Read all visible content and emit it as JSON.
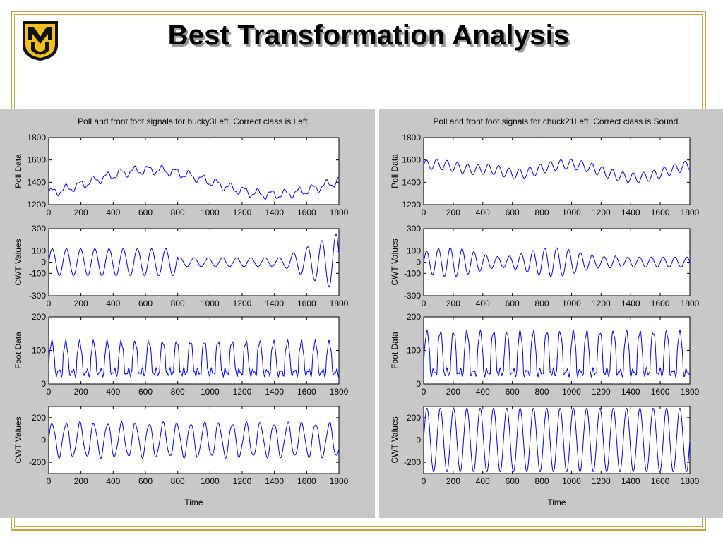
{
  "slide": {
    "title": "Best Transformation Analysis",
    "logo_letters": "MU"
  },
  "colors": {
    "frame": "#c8a04a",
    "panel_bg": "#c8c8c8",
    "plot_bg": "#ffffff",
    "trace": "#0000ff",
    "logo_gold": "#f2c21b",
    "logo_black": "#111111"
  },
  "chart_data": [
    {
      "type": "line",
      "title": "Poll and front foot signals for bucky3Left. Correct class is Left.",
      "xlabel": "Time",
      "x_ticks": [
        "0",
        "200",
        "400",
        "600",
        "800",
        "1000",
        "1200",
        "1400",
        "1600",
        "1800"
      ],
      "xlim": [
        0,
        1800
      ],
      "subplots": [
        {
          "ylabel": "Poll Data",
          "ylim": [
            1200,
            1800
          ],
          "y_ticks": [
            "1200",
            "1400",
            "1600",
            "1800"
          ]
        },
        {
          "ylabel": "CWT Values",
          "ylim": [
            -300,
            300
          ],
          "y_ticks": [
            "-300",
            "-100",
            "0",
            "100",
            "300"
          ]
        },
        {
          "ylabel": "Foot Data",
          "ylim": [
            0,
            200
          ],
          "y_ticks": [
            "0",
            "100",
            "200"
          ]
        },
        {
          "ylabel": "CWT Values",
          "ylim": [
            -300,
            300
          ],
          "y_ticks": [
            "-200",
            "0",
            "200"
          ]
        }
      ]
    },
    {
      "type": "line",
      "title": "Poll and front foot signals for chuck21Left. Correct class is Sound.",
      "xlabel": "Time",
      "x_ticks": [
        "0",
        "200",
        "400",
        "600",
        "800",
        "1000",
        "1200",
        "1400",
        "1600",
        "1800"
      ],
      "xlim": [
        0,
        1800
      ],
      "subplots": [
        {
          "ylabel": "Poll Data",
          "ylim": [
            1200,
            1800
          ],
          "y_ticks": [
            "1200",
            "1400",
            "1600",
            "1800"
          ]
        },
        {
          "ylabel": "CWT Values",
          "ylim": [
            -300,
            300
          ],
          "y_ticks": [
            "-300",
            "-100",
            "0",
            "100",
            "300"
          ]
        },
        {
          "ylabel": "Foot Data",
          "ylim": [
            0,
            200
          ],
          "y_ticks": [
            "0",
            "100",
            "200"
          ]
        },
        {
          "ylabel": "CWT Values",
          "ylim": [
            -300,
            300
          ],
          "y_ticks": [
            "-200",
            "0",
            "200"
          ]
        }
      ]
    }
  ]
}
